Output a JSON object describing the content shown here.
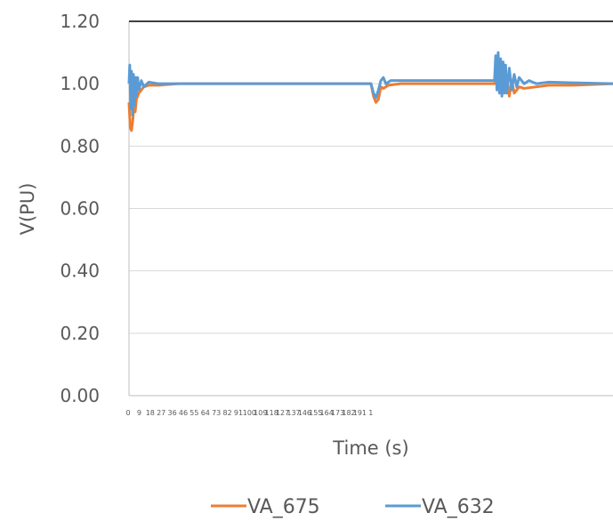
{
  "chart_data": {
    "type": "line",
    "title": "",
    "xlabel": "Time (s)",
    "ylabel": "V(PU)",
    "ylim": [
      0,
      1.2
    ],
    "xlim": [
      0,
      196
    ],
    "yticks": [
      "0.00",
      "0.20",
      "0.40",
      "0.60",
      "0.80",
      "1.00",
      "1.20"
    ],
    "xticks": [
      "0",
      "9",
      "18",
      "27",
      "36",
      "46",
      "55",
      "64",
      "73",
      "82",
      "91",
      "100",
      "109",
      "118",
      "127",
      "137",
      "146",
      "155",
      "164",
      "173",
      "182",
      "191",
      "1"
    ],
    "grid": true,
    "legend": "bottom",
    "series": [
      {
        "name": "VA_675",
        "color": "#ED7D31",
        "points": [
          [
            0,
            0.94
          ],
          [
            0.5,
            0.86
          ],
          [
            1,
            0.85
          ],
          [
            1.5,
            0.88
          ],
          [
            2,
            0.93
          ],
          [
            2.5,
            0.91
          ],
          [
            3,
            0.95
          ],
          [
            4,
            0.97
          ],
          [
            5,
            0.98
          ],
          [
            6,
            0.99
          ],
          [
            8,
            0.995
          ],
          [
            12,
            0.995
          ],
          [
            20,
            1.0
          ],
          [
            40,
            1.0
          ],
          [
            70,
            1.0
          ],
          [
            98,
            1.0
          ],
          [
            99,
            0.96
          ],
          [
            100,
            0.94
          ],
          [
            101,
            0.95
          ],
          [
            102,
            0.99
          ],
          [
            103,
            0.985
          ],
          [
            105,
            0.995
          ],
          [
            110,
            1.0
          ],
          [
            140,
            1.0
          ],
          [
            148,
            1.0
          ],
          [
            149,
            1.02
          ],
          [
            150,
            0.99
          ],
          [
            151,
            1.03
          ],
          [
            152,
            0.97
          ],
          [
            153,
            1.02
          ],
          [
            154,
            0.96
          ],
          [
            155,
            1.01
          ],
          [
            156,
            0.97
          ],
          [
            158,
            0.99
          ],
          [
            160,
            0.985
          ],
          [
            165,
            0.99
          ],
          [
            170,
            0.995
          ],
          [
            180,
            0.995
          ],
          [
            196,
            1.0
          ]
        ]
      },
      {
        "name": "VA_632",
        "color": "#5B9BD5",
        "points": [
          [
            0,
            1.0
          ],
          [
            0.3,
            1.06
          ],
          [
            0.7,
            0.92
          ],
          [
            1,
            1.04
          ],
          [
            1.4,
            0.9
          ],
          [
            1.8,
            1.03
          ],
          [
            2.2,
            0.93
          ],
          [
            2.6,
            1.02
          ],
          [
            3,
            0.96
          ],
          [
            3.5,
            1.02
          ],
          [
            4,
            0.98
          ],
          [
            5,
            1.01
          ],
          [
            6,
            0.99
          ],
          [
            8,
            1.005
          ],
          [
            12,
            1.0
          ],
          [
            40,
            1.0
          ],
          [
            70,
            1.0
          ],
          [
            98,
            1.0
          ],
          [
            99,
            0.97
          ],
          [
            100,
            0.955
          ],
          [
            101,
            0.98
          ],
          [
            102,
            1.01
          ],
          [
            103,
            1.02
          ],
          [
            104,
            1.0
          ],
          [
            106,
            1.01
          ],
          [
            110,
            1.01
          ],
          [
            120,
            1.01
          ],
          [
            130,
            1.01
          ],
          [
            140,
            1.01
          ],
          [
            148,
            1.01
          ],
          [
            148.5,
            1.09
          ],
          [
            149,
            0.98
          ],
          [
            149.5,
            1.1
          ],
          [
            150,
            0.97
          ],
          [
            150.5,
            1.08
          ],
          [
            151,
            0.96
          ],
          [
            151.5,
            1.07
          ],
          [
            152,
            0.97
          ],
          [
            152.5,
            1.06
          ],
          [
            153,
            0.97
          ],
          [
            154,
            1.05
          ],
          [
            155,
            0.98
          ],
          [
            156,
            1.03
          ],
          [
            157,
            0.99
          ],
          [
            158,
            1.02
          ],
          [
            160,
            1.0
          ],
          [
            162,
            1.01
          ],
          [
            165,
            1.0
          ],
          [
            170,
            1.005
          ],
          [
            196,
            1.0
          ]
        ]
      }
    ]
  }
}
